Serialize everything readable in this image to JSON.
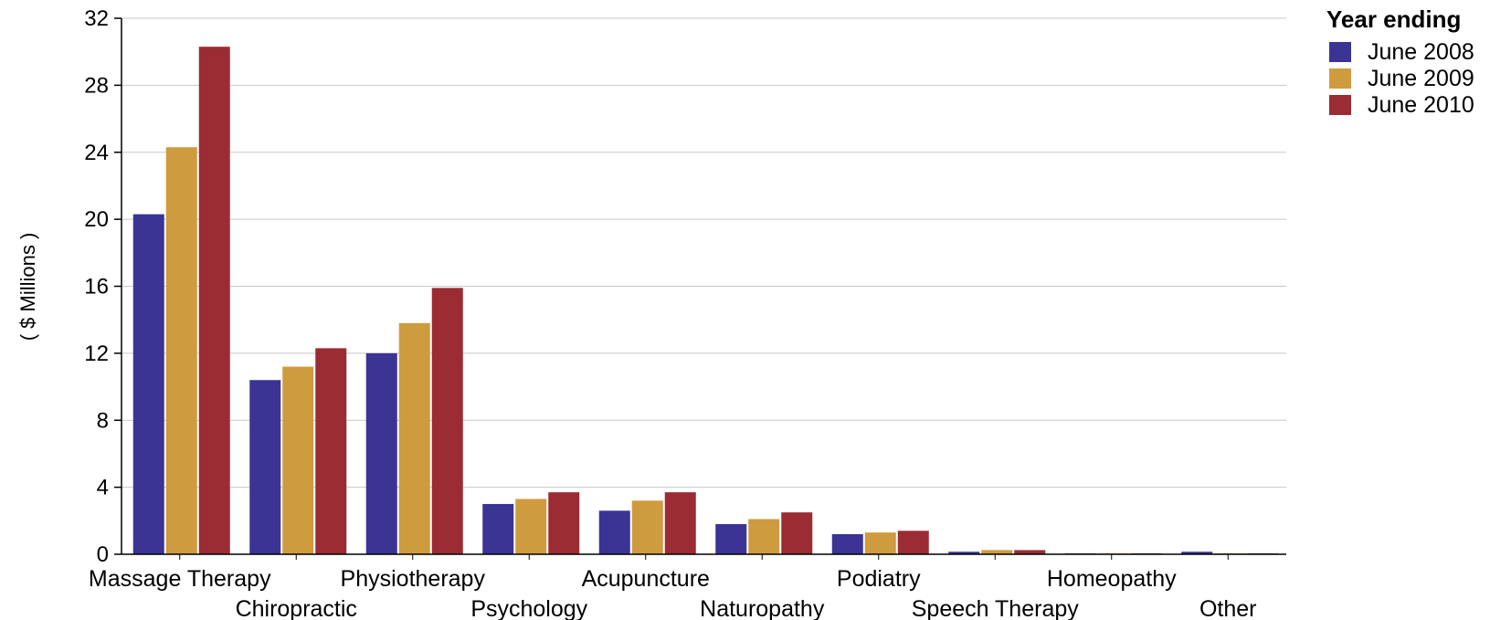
{
  "chart_data": {
    "type": "bar",
    "categories": [
      "Massage Therapy",
      "Chiropractic",
      "Physiotherapy",
      "Psychology",
      "Acupuncture",
      "Naturopathy",
      "Podiatry",
      "Speech Therapy",
      "Homeopathy",
      "Other"
    ],
    "series": [
      {
        "name": "June 2008",
        "color": "#3b3494",
        "values": [
          20.3,
          10.4,
          12.0,
          3.0,
          2.6,
          1.8,
          1.2,
          0.15,
          0.05,
          0.15
        ]
      },
      {
        "name": "June 2009",
        "color": "#cf9b3f",
        "values": [
          24.3,
          11.2,
          13.8,
          3.3,
          3.2,
          2.1,
          1.3,
          0.25,
          0.05,
          0.05
        ]
      },
      {
        "name": "June 2010",
        "color": "#9b2c33",
        "values": [
          30.3,
          12.3,
          15.9,
          3.7,
          3.7,
          2.5,
          1.4,
          0.25,
          0.05,
          0.05
        ]
      }
    ],
    "title": "",
    "xlabel": "",
    "ylabel": "( $ Millions )",
    "ylim": [
      0,
      32
    ],
    "yticks": [
      0,
      4,
      8,
      12,
      16,
      20,
      24,
      28,
      32
    ],
    "grid": true,
    "legend": {
      "title": "Year ending",
      "position": "top-right"
    }
  }
}
